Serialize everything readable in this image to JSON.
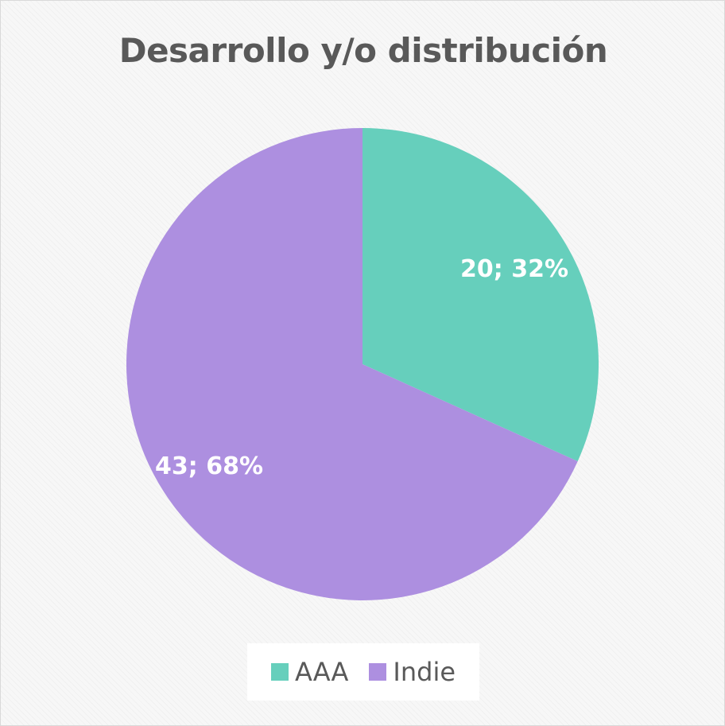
{
  "chart_data": {
    "type": "pie",
    "title": "Desarrollo y/o distribución",
    "slices": [
      {
        "name": "AAA",
        "value": 20,
        "percent": 32,
        "label": "20; 32%",
        "color": "#66CFBC"
      },
      {
        "name": "Indie",
        "value": 43,
        "percent": 68,
        "label": "43; 68%",
        "color": "#AD8FE0"
      }
    ],
    "legend_position": "bottom"
  }
}
